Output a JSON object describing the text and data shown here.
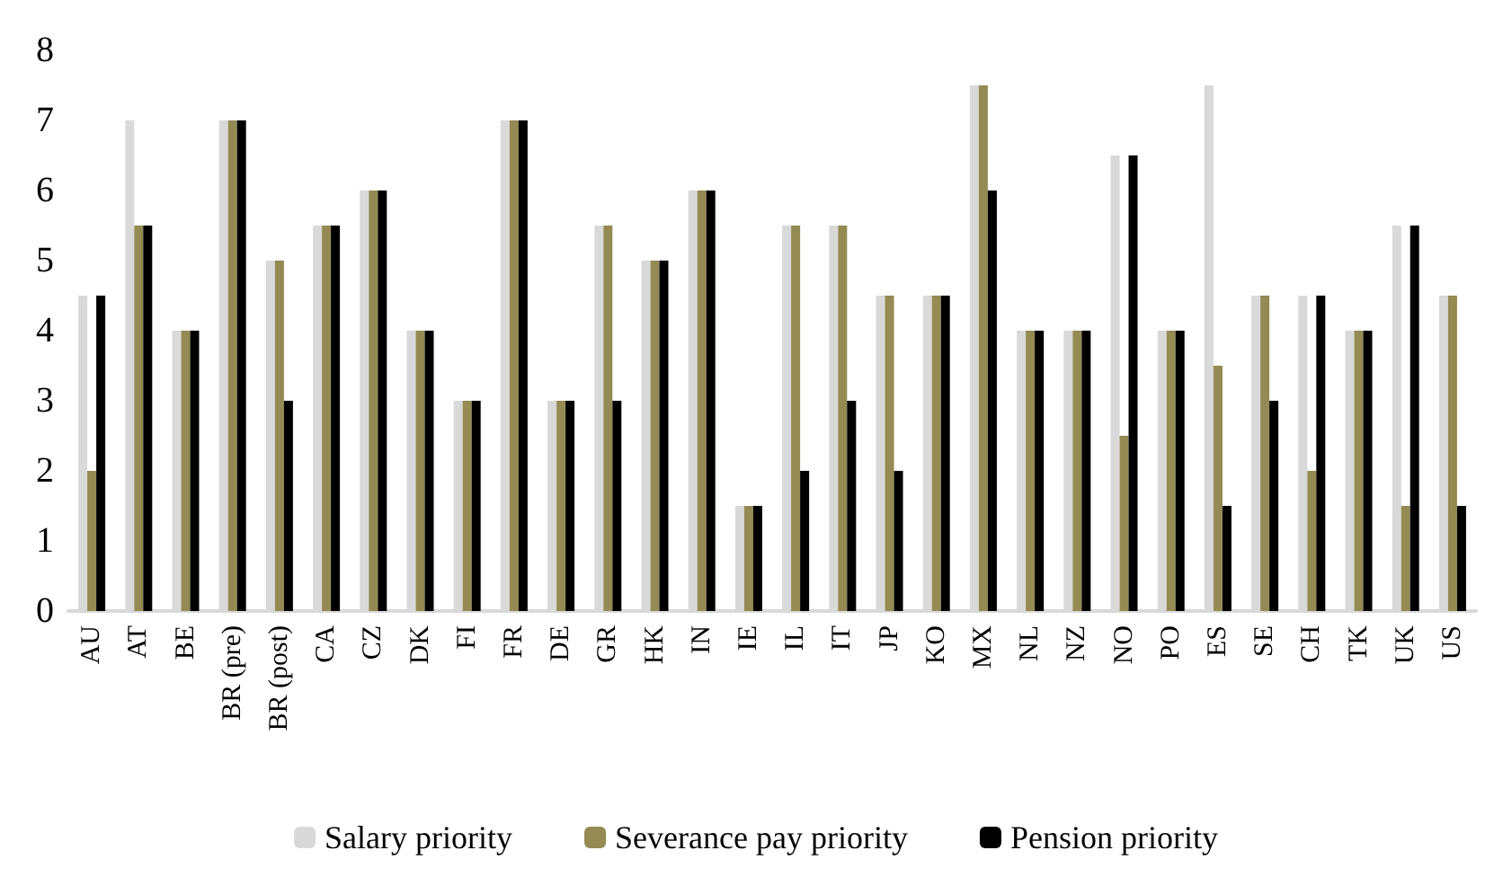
{
  "chart_data": {
    "type": "bar",
    "categories": [
      "AU",
      "AT",
      "BE",
      "BR (pre)",
      "BR (post)",
      "CA",
      "CZ",
      "DK",
      "FI",
      "FR",
      "DE",
      "GR",
      "HK",
      "IN",
      "IE",
      "IL",
      "IT",
      "JP",
      "KO",
      "MX",
      "NL",
      "NZ",
      "NO",
      "PO",
      "ES",
      "SE",
      "CH",
      "TK",
      "UK",
      "US"
    ],
    "series": [
      {
        "name": "Salary priority",
        "color": "#d9d9d9",
        "values": [
          4.5,
          7,
          4,
          7,
          5,
          5.5,
          6,
          4,
          3,
          7,
          3,
          5.5,
          5,
          6,
          1.5,
          5.5,
          5.5,
          4.5,
          4.5,
          7.5,
          4,
          4,
          6.5,
          4,
          7.5,
          4.5,
          4.5,
          4,
          5.5,
          4.5
        ]
      },
      {
        "name": "Severance pay priority",
        "color": "#948a54",
        "values": [
          2,
          5.5,
          4,
          7,
          5,
          5.5,
          6,
          4,
          3,
          7,
          3,
          5.5,
          5,
          6,
          1.5,
          5.5,
          5.5,
          4.5,
          4.5,
          7.5,
          4,
          4,
          2.5,
          4,
          3.5,
          4.5,
          2,
          4,
          1.5,
          4.5
        ]
      },
      {
        "name": "Pension priority",
        "color": "#000000",
        "values": [
          4.5,
          5.5,
          4,
          7,
          3,
          5.5,
          6,
          4,
          3,
          7,
          3,
          3,
          5,
          6,
          1.5,
          2,
          3,
          2,
          4.5,
          6,
          4,
          4,
          6.5,
          4,
          1.5,
          3,
          4.5,
          4,
          5.5,
          1.5
        ]
      }
    ],
    "ylim": [
      0,
      8
    ],
    "yticks": [
      0,
      1,
      2,
      3,
      4,
      5,
      6,
      7,
      8
    ],
    "grid": false,
    "legend": "bottom"
  }
}
